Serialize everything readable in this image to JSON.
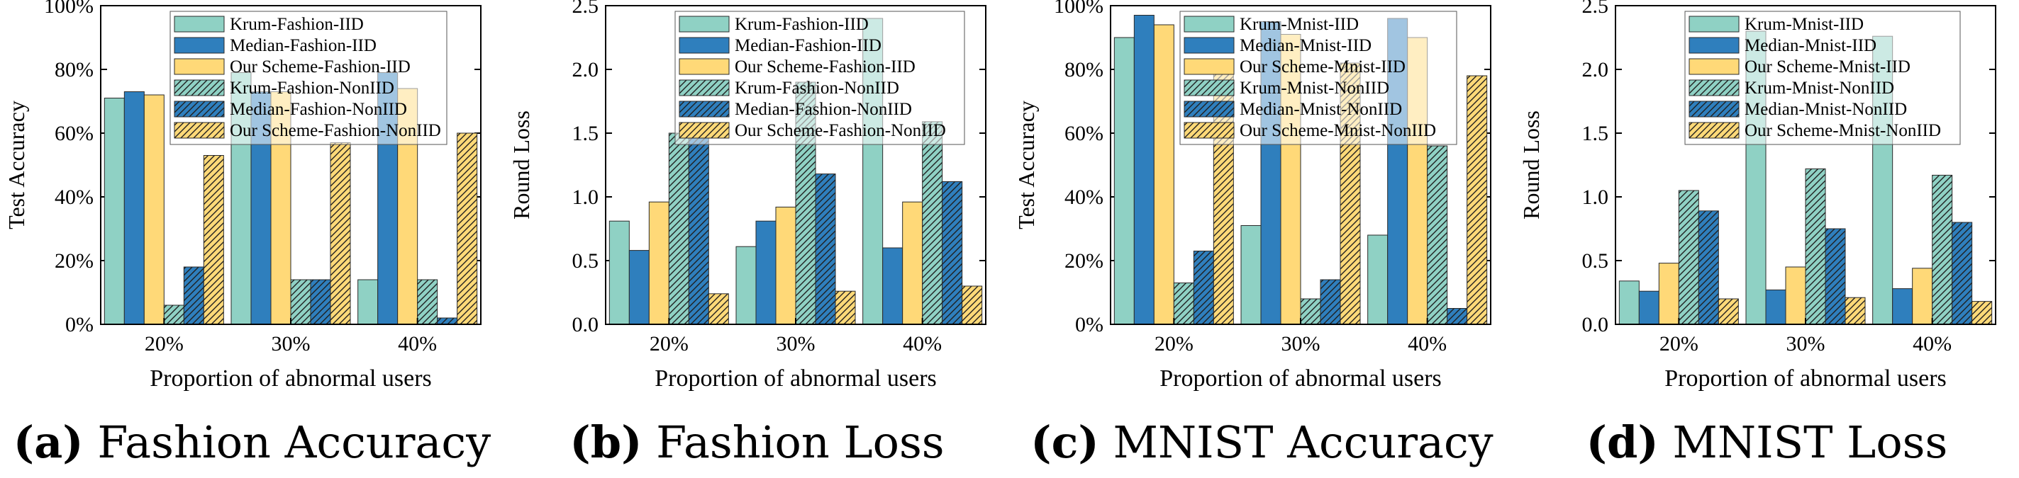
{
  "x_label": "Proportion of abnormal users",
  "categories": [
    "20%",
    "30%",
    "40%"
  ],
  "legend_fashion": [
    "Krum-Fashion-IID",
    "Median-Fashion-IID",
    "Our Scheme-Fashion-IID",
    "Krum-Fashion-NonIID",
    "Median-Fashion-NonIID",
    "Our Scheme-Fashion-NonIID"
  ],
  "legend_mnist": [
    "Krum-Mnist-IID",
    "Median-Mnist-IID",
    "Our Scheme-Mnist-IID",
    "Krum-Mnist-NonIID",
    "Median-Mnist-NonIID",
    "Our Scheme-Mnist-NonIID"
  ],
  "colors": {
    "krum": "#8fd1c4",
    "median": "#2f7fbd",
    "ours": "#ffd978",
    "edge": "#2a2a2a"
  },
  "chart_data": [
    {
      "type": "bar",
      "caption_label": "(a)",
      "caption_title": "Fashion Accuracy",
      "ylabel": "Test Accuracy",
      "ylim": [
        0,
        100
      ],
      "yticks": [
        "0%",
        "20%",
        "40%",
        "60%",
        "80%",
        "100%"
      ],
      "series": [
        {
          "name": "Krum-Fashion-IID",
          "values": [
            71,
            79,
            14
          ]
        },
        {
          "name": "Median-Fashion-IID",
          "values": [
            73,
            73,
            79
          ]
        },
        {
          "name": "Our Scheme-Fashion-IID",
          "values": [
            72,
            73,
            74
          ]
        },
        {
          "name": "Krum-Fashion-NonIID",
          "values": [
            6,
            14,
            14
          ]
        },
        {
          "name": "Median-Fashion-NonIID",
          "values": [
            18,
            14,
            2
          ]
        },
        {
          "name": "Our Scheme-Fashion-NonIID",
          "values": [
            53,
            57,
            60
          ]
        }
      ]
    },
    {
      "type": "bar",
      "caption_label": "(b)",
      "caption_title": "Fashion Loss",
      "ylabel": "Round Loss",
      "ylim": [
        0,
        2.5
      ],
      "yticks": [
        "0.0",
        "0.5",
        "1.0",
        "1.5",
        "2.0",
        "2.5"
      ],
      "series": [
        {
          "name": "Krum-Fashion-IID",
          "values": [
            0.81,
            0.61,
            2.4
          ]
        },
        {
          "name": "Median-Fashion-IID",
          "values": [
            0.58,
            0.81,
            0.6
          ]
        },
        {
          "name": "Our Scheme-Fashion-IID",
          "values": [
            0.96,
            0.92,
            0.96
          ]
        },
        {
          "name": "Krum-Fashion-NonIID",
          "values": [
            1.5,
            1.9,
            1.59
          ]
        },
        {
          "name": "Median-Fashion-NonIID",
          "values": [
            1.48,
            1.18,
            1.12
          ]
        },
        {
          "name": "Our Scheme-Fashion-NonIID",
          "values": [
            0.24,
            0.26,
            0.3
          ]
        }
      ]
    },
    {
      "type": "bar",
      "caption_label": "(c)",
      "caption_title": "MNIST Accuracy",
      "ylabel": "Test Accuracy",
      "ylim": [
        0,
        100
      ],
      "yticks": [
        "0%",
        "20%",
        "40%",
        "60%",
        "80%",
        "100%"
      ],
      "series": [
        {
          "name": "Krum-Mnist-IID",
          "values": [
            90,
            31,
            28
          ]
        },
        {
          "name": "Median-Mnist-IID",
          "values": [
            97,
            95,
            96
          ]
        },
        {
          "name": "Our Scheme-Mnist-IID",
          "values": [
            94,
            91,
            90
          ]
        },
        {
          "name": "Krum-Mnist-NonIID",
          "values": [
            13,
            8,
            56
          ]
        },
        {
          "name": "Median-Mnist-NonIID",
          "values": [
            23,
            14,
            5
          ]
        },
        {
          "name": "Our Scheme-Mnist-NonIID",
          "values": [
            83,
            82,
            78
          ]
        }
      ]
    },
    {
      "type": "bar",
      "caption_label": "(d)",
      "caption_title": "MNIST Loss",
      "ylabel": "Round Loss",
      "ylim": [
        0,
        2.5
      ],
      "yticks": [
        "0.0",
        "0.5",
        "1.0",
        "1.5",
        "2.0",
        "2.5"
      ],
      "series": [
        {
          "name": "Krum-Mnist-IID",
          "values": [
            0.34,
            2.3,
            2.26
          ]
        },
        {
          "name": "Median-Mnist-IID",
          "values": [
            0.26,
            0.27,
            0.28
          ]
        },
        {
          "name": "Our Scheme-Mnist-IID",
          "values": [
            0.48,
            0.45,
            0.44
          ]
        },
        {
          "name": "Krum-Mnist-NonIID",
          "values": [
            1.05,
            1.22,
            1.17
          ]
        },
        {
          "name": "Median-Mnist-NonIID",
          "values": [
            0.89,
            0.75,
            0.8
          ]
        },
        {
          "name": "Our Scheme-Mnist-NonIID",
          "values": [
            0.2,
            0.21,
            0.18
          ]
        }
      ]
    }
  ]
}
